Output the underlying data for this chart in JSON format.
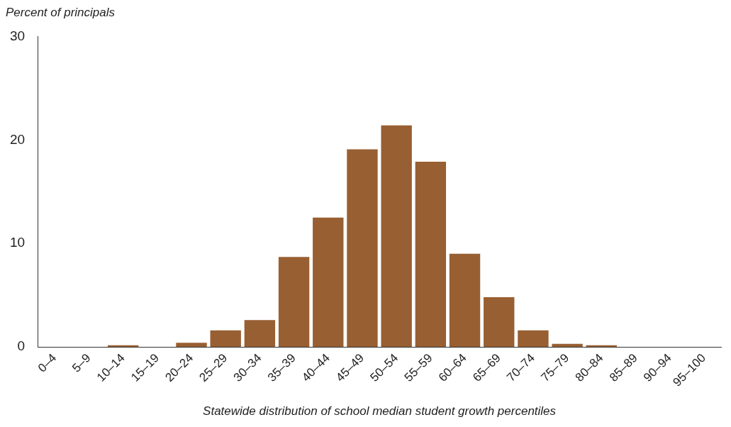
{
  "chart_data": {
    "type": "bar",
    "ylabel": "Percent of principals",
    "xlabel": "Statewide distribution of school median student growth percentiles",
    "categories": [
      "0–4",
      "5–9",
      "10–14",
      "15–19",
      "20–24",
      "25–29",
      "30–34",
      "35–39",
      "40–44",
      "45–49",
      "50–54",
      "55–59",
      "60–64",
      "65–69",
      "70–74",
      "75–79",
      "80–84",
      "85–89",
      "90–94",
      "95–100"
    ],
    "values": [
      0,
      0,
      0.15,
      0,
      0.4,
      1.6,
      2.6,
      8.7,
      12.5,
      19.1,
      21.4,
      17.9,
      9.0,
      4.8,
      1.6,
      0.3,
      0.15,
      0,
      0,
      0
    ],
    "color": "#985f32",
    "ylim": [
      0,
      30
    ],
    "yticks": [
      0,
      10,
      20,
      30
    ],
    "grid": false,
    "legend": false
  }
}
